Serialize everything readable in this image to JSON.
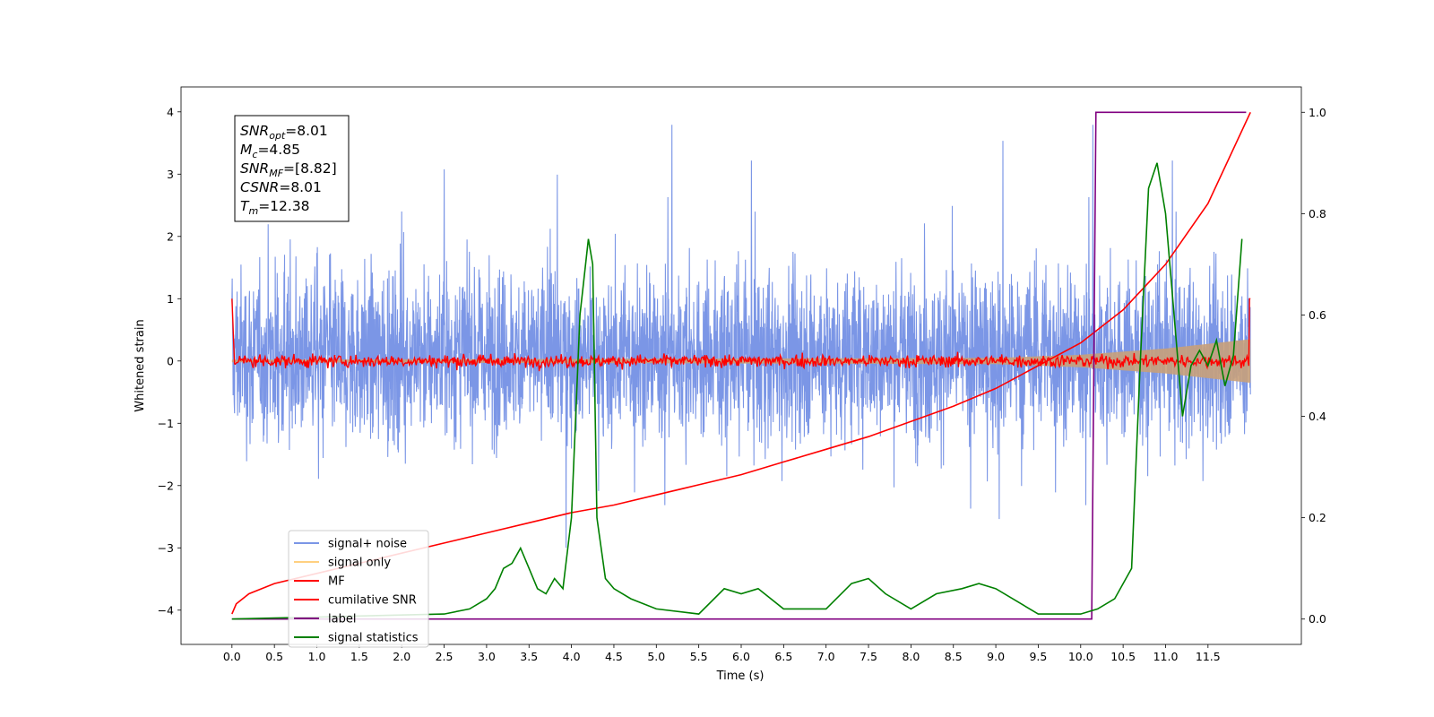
{
  "chart_data": {
    "type": "line",
    "xlabel": "Time (s)",
    "ylabel": "Whitened strain",
    "xlim": [
      -0.6,
      12.6
    ],
    "ylim": [
      -4.55,
      4.4
    ],
    "y2lim": [
      -0.05,
      1.05
    ],
    "x_ticks": [
      "0.0",
      "0.5",
      "1.0",
      "1.5",
      "2.0",
      "2.5",
      "3.0",
      "3.5",
      "4.0",
      "4.5",
      "5.0",
      "5.5",
      "6.0",
      "6.5",
      "7.0",
      "7.5",
      "8.0",
      "8.5",
      "9.0",
      "9.5",
      "10.0",
      "10.5",
      "11.0",
      "11.5"
    ],
    "y_ticks": [
      "−4",
      "−3",
      "−2",
      "−1",
      "0",
      "1",
      "2",
      "3",
      "4"
    ],
    "y2_ticks": [
      "0.0",
      "0.2",
      "0.4",
      "0.6",
      "0.8",
      "1.0"
    ],
    "annotation_lines": [
      {
        "sym": "SNR",
        "sub": "opt",
        "val": "=8.01"
      },
      {
        "sym": "M",
        "sub": "c",
        "val": "=4.85"
      },
      {
        "sym": "SNR",
        "sub": "MF",
        "val": "=[8.82]"
      },
      {
        "sym": "CSNR",
        "sub": "",
        "val": "=8.01"
      },
      {
        "sym": "T",
        "sub": "m",
        "val": "=12.38"
      }
    ],
    "legend": [
      {
        "label": "signal+ noise",
        "color": "#7b96e6"
      },
      {
        "label": "signal only",
        "color": "#ffd080"
      },
      {
        "label": "MF",
        "color": "#ff0000"
      },
      {
        "label": "cumilative SNR",
        "color": "#ff0000"
      },
      {
        "label": "label",
        "color": "#800080"
      },
      {
        "label": "signal statistics",
        "color": "#008000"
      }
    ],
    "series": [
      {
        "name": "signal+ noise",
        "axis": "left",
        "color": "#7b96e6",
        "noise_band": [
          -2.2,
          2.4
        ],
        "x_range": [
          0.0,
          12.0
        ]
      },
      {
        "name": "signal only",
        "axis": "left",
        "color": "#c8a07a",
        "envelope": {
          "x": [
            0.0,
            9.0,
            10.0,
            11.0,
            12.0
          ],
          "half_width": [
            0.02,
            0.05,
            0.1,
            0.2,
            0.35
          ]
        }
      },
      {
        "name": "MF",
        "axis": "left",
        "color": "#ff0000",
        "level": 0.0,
        "spread": 0.12
      },
      {
        "name": "cumilative SNR",
        "axis": "right",
        "color": "#ff0000",
        "x": [
          0.0,
          0.05,
          0.2,
          0.5,
          1.0,
          1.5,
          2.0,
          2.5,
          3.0,
          3.5,
          4.0,
          4.5,
          5.0,
          5.5,
          6.0,
          6.5,
          7.0,
          7.5,
          8.0,
          8.5,
          9.0,
          9.5,
          10.0,
          10.5,
          11.0,
          11.5,
          12.0
        ],
        "y": [
          0.01,
          0.03,
          0.05,
          0.07,
          0.09,
          0.11,
          0.13,
          0.15,
          0.17,
          0.19,
          0.21,
          0.225,
          0.245,
          0.265,
          0.285,
          0.31,
          0.335,
          0.36,
          0.39,
          0.42,
          0.455,
          0.5,
          0.545,
          0.61,
          0.7,
          0.82,
          1.0
        ]
      },
      {
        "name": "label",
        "axis": "right",
        "color": "#800080",
        "x": [
          0.0,
          10.13,
          10.18,
          11.95
        ],
        "y": [
          0.0,
          0.0,
          1.0,
          1.0
        ]
      },
      {
        "name": "signal statistics",
        "axis": "right",
        "color": "#008000",
        "x": [
          0.0,
          0.5,
          1.0,
          1.5,
          2.0,
          2.5,
          2.8,
          3.0,
          3.1,
          3.2,
          3.3,
          3.4,
          3.5,
          3.6,
          3.7,
          3.8,
          3.9,
          4.0,
          4.1,
          4.2,
          4.25,
          4.3,
          4.4,
          4.5,
          4.7,
          5.0,
          5.5,
          5.8,
          6.0,
          6.2,
          6.5,
          7.0,
          7.3,
          7.5,
          7.7,
          8.0,
          8.3,
          8.6,
          8.8,
          9.0,
          9.5,
          9.8,
          10.0,
          10.2,
          10.4,
          10.6,
          10.7,
          10.8,
          10.9,
          11.0,
          11.1,
          11.2,
          11.3,
          11.4,
          11.5,
          11.6,
          11.7,
          11.8,
          11.9
        ],
        "y": [
          0.0,
          0.002,
          0.004,
          0.006,
          0.008,
          0.01,
          0.02,
          0.04,
          0.06,
          0.1,
          0.11,
          0.14,
          0.1,
          0.06,
          0.05,
          0.08,
          0.06,
          0.2,
          0.6,
          0.75,
          0.7,
          0.2,
          0.08,
          0.06,
          0.04,
          0.02,
          0.01,
          0.06,
          0.05,
          0.06,
          0.02,
          0.02,
          0.07,
          0.08,
          0.05,
          0.02,
          0.05,
          0.06,
          0.07,
          0.06,
          0.01,
          0.01,
          0.01,
          0.02,
          0.04,
          0.1,
          0.5,
          0.85,
          0.9,
          0.8,
          0.6,
          0.4,
          0.5,
          0.53,
          0.5,
          0.55,
          0.46,
          0.52,
          0.75
        ]
      }
    ]
  }
}
